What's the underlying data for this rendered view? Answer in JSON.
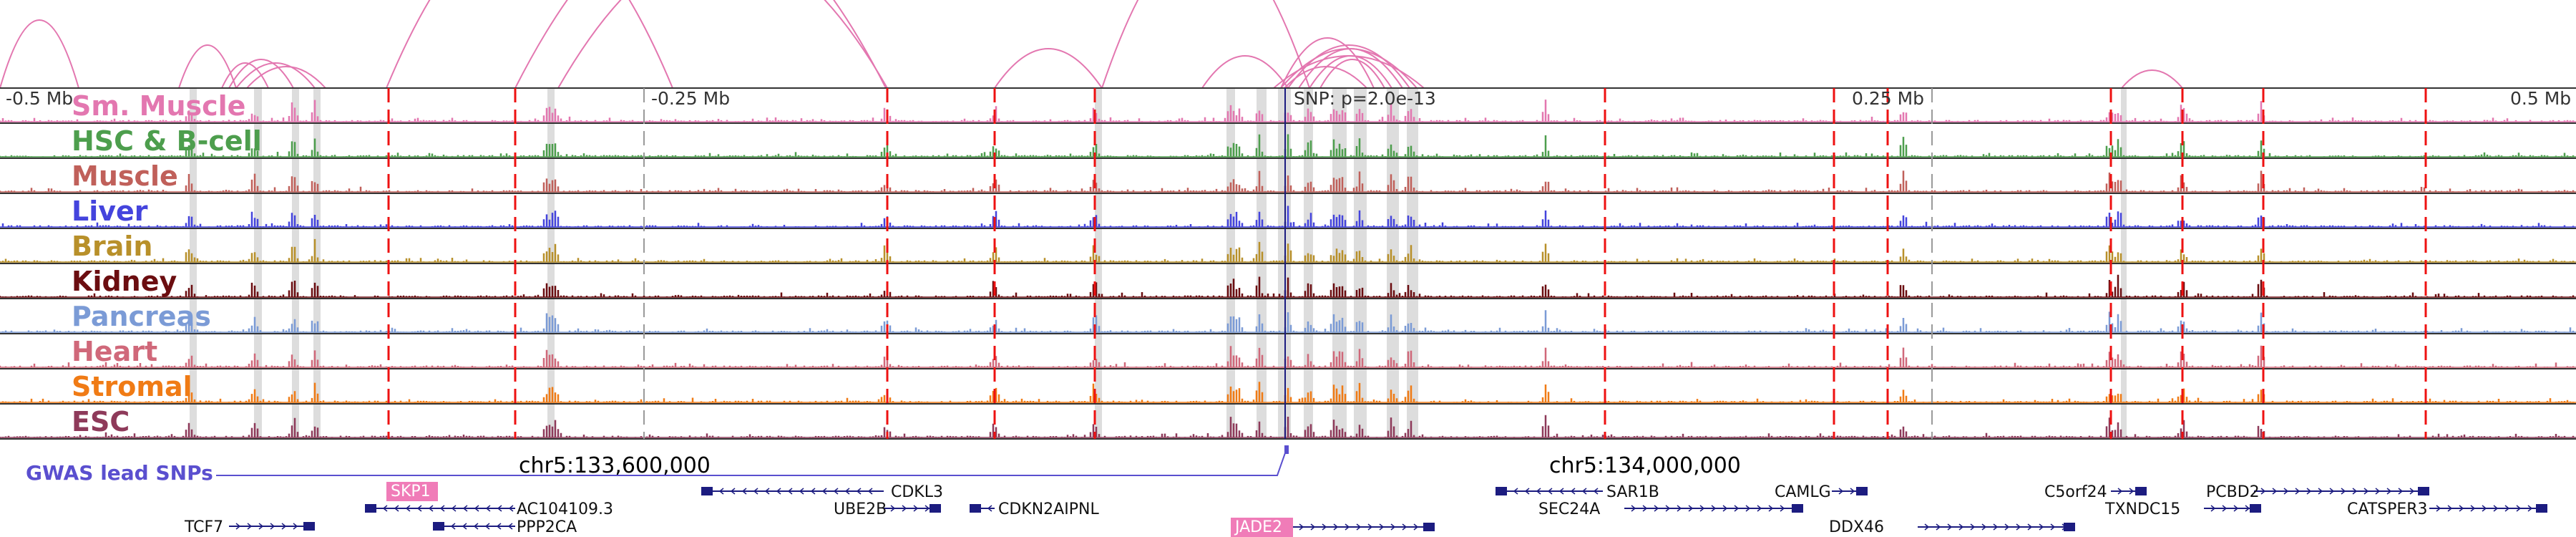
{
  "figure": {
    "scale": {
      "left": "-0.5 Mb",
      "left_mid": "-0.25 Mb",
      "snp": "SNP: p=2.0e-13",
      "right_mid": "0.25 Mb",
      "right": "0.5 Mb"
    },
    "coordinates": [
      "chr5:133,600,000",
      "chr5:134,000,000"
    ],
    "gwas_label": "GWAS lead SNPs",
    "colors": {
      "arc": "#e377b0",
      "red_line": "#ee1111",
      "grey_line": "#999999",
      "highlight": "#dddddd",
      "gene_body": "#1c1c80",
      "gene_highlight": "#f07cb8",
      "gwas": "#5a4fcf"
    }
  },
  "chart_data": {
    "type": "genome-browser",
    "tracks": [
      {
        "name": "Sm. Muscle",
        "color": "#e377b0"
      },
      {
        "name": "HSC & B-cell",
        "color": "#4d9e4d"
      },
      {
        "name": "Muscle",
        "color": "#c0605a"
      },
      {
        "name": "Liver",
        "color": "#4444dd"
      },
      {
        "name": "Brain",
        "color": "#b8902a"
      },
      {
        "name": "Kidney",
        "color": "#6b0d10"
      },
      {
        "name": "Pancreas",
        "color": "#7b9bd6"
      },
      {
        "name": "Heart",
        "color": "#d0687a"
      },
      {
        "name": "Stromal",
        "color": "#f07b15"
      },
      {
        "name": "ESC",
        "color": "#8e3a5a"
      }
    ],
    "genes": [
      {
        "name": "SKP1",
        "highlight": true
      },
      {
        "name": "AC104109.3",
        "highlight": false
      },
      {
        "name": "TCF7",
        "highlight": false
      },
      {
        "name": "PPP2CA",
        "highlight": false
      },
      {
        "name": "CDKL3",
        "highlight": false
      },
      {
        "name": "UBE2B",
        "highlight": false
      },
      {
        "name": "CDKN2AIPNL",
        "highlight": false
      },
      {
        "name": "JADE2",
        "highlight": true
      },
      {
        "name": "SAR1B",
        "highlight": false
      },
      {
        "name": "SEC24A",
        "highlight": false
      },
      {
        "name": "CAMLG",
        "highlight": false
      },
      {
        "name": "DDX46",
        "highlight": false
      },
      {
        "name": "C5orf24",
        "highlight": false
      },
      {
        "name": "TXNDC15",
        "highlight": false
      },
      {
        "name": "PCBD2",
        "highlight": false
      },
      {
        "name": "CATSPER3",
        "highlight": false
      }
    ]
  }
}
